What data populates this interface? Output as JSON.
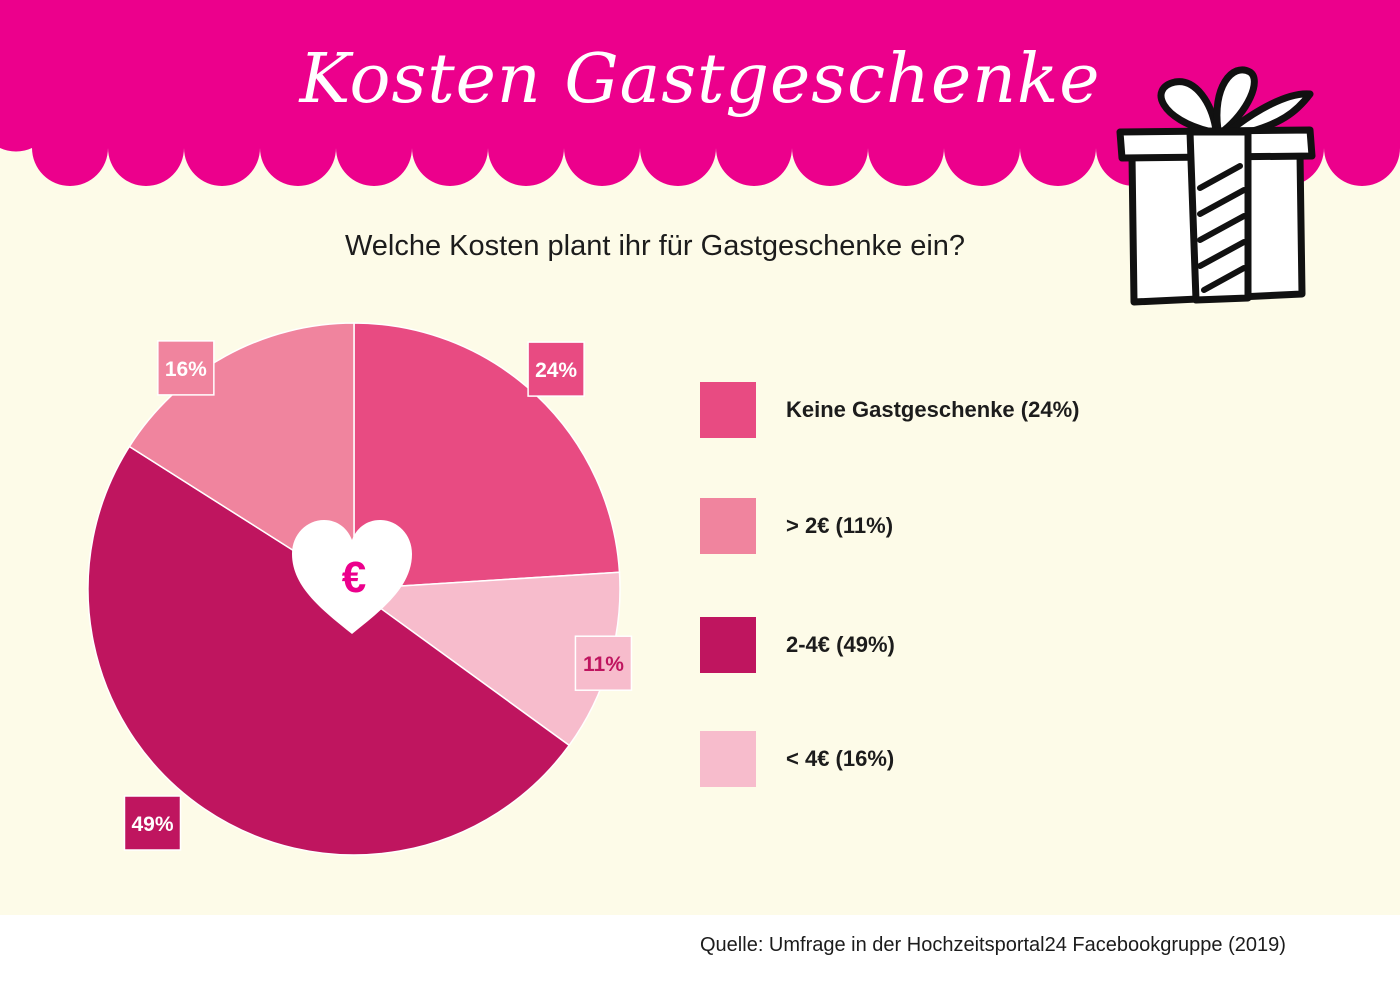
{
  "header": {
    "title": "Kosten Gastgeschenke",
    "banner_color": "#ec008c",
    "background_color": "#fdfbe8"
  },
  "subtitle": "Welche Kosten plant ihr für Gastgeschenke ein?",
  "center_icon": {
    "name": "euro-heart-icon",
    "symbol": "€"
  },
  "decoration": {
    "name": "gift-box-icon"
  },
  "chart_data": {
    "type": "pie",
    "title": "Welche Kosten plant ihr für Gastgeschenke ein?",
    "slices": [
      {
        "label": "Keine Gastgeschenke",
        "value": 24,
        "value_label": "24%",
        "color": "#e84b82"
      },
      {
        "label": "> 2€",
        "value": 11,
        "value_label": "11%",
        "color": "#f7bccc"
      },
      {
        "label": "2-4€",
        "value": 49,
        "value_label": "49%",
        "color": "#bf155f"
      },
      {
        "label": "< 4€",
        "value": 16,
        "value_label": "16%",
        "color": "#f0849e"
      }
    ],
    "legend": {
      "placement": "right",
      "items": [
        {
          "label": "Keine Gastgeschenke (24%)",
          "color": "#e84b82"
        },
        {
          "label": "> 2€ (11%)",
          "color": "#f0849e"
        },
        {
          "label": "2-4€ (49%)",
          "color": "#bf155f"
        },
        {
          "label": "< 4€ (16%)",
          "color": "#f7bccc"
        }
      ]
    }
  },
  "source": "Quelle: Umfrage in der Hochzeitsportal24 Facebookgruppe (2019)"
}
